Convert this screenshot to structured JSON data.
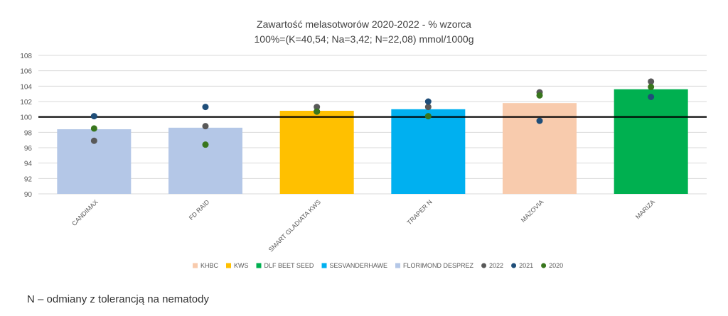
{
  "chart_data": {
    "type": "bar",
    "title": "Zawartość melasotworów 2020-2022 - % wzorca",
    "subtitle": "100%=(K=40,54; Na=3,42; N=22,08) mmol/1000g",
    "xlabel": "",
    "ylabel": "",
    "ylim": [
      90,
      108
    ],
    "yticks": [
      90,
      92,
      94,
      96,
      98,
      100,
      102,
      104,
      106,
      108
    ],
    "grid": true,
    "reference_line": 100,
    "legend_position": "bottom",
    "categories": [
      "CANDIMAX",
      "FD RAID",
      "SMART GLADIATA KWS",
      "TRAPER N",
      "MAZOVIA",
      "MARIZA"
    ],
    "values": [
      98.4,
      98.6,
      100.8,
      101.0,
      101.8,
      103.6
    ],
    "bar_groups": [
      "FLORIMOND DESPREZ",
      "FLORIMOND DESPREZ",
      "KWS",
      "SESVANDERHAWE",
      "KHBC",
      "DLF BEET SEED"
    ],
    "groups": [
      {
        "name": "KHBC",
        "color": "#f8cbad"
      },
      {
        "name": "KWS",
        "color": "#ffc000"
      },
      {
        "name": "DLF BEET SEED",
        "color": "#00b050"
      },
      {
        "name": "SESVANDERHAWE",
        "color": "#00b0f0"
      },
      {
        "name": "FLORIMOND DESPREZ",
        "color": "#b4c7e7"
      }
    ],
    "series": [
      {
        "name": "2022",
        "color": "#595959",
        "values": [
          96.9,
          98.8,
          101.3,
          101.3,
          103.2,
          104.6
        ]
      },
      {
        "name": "2021",
        "color": "#1f4e79",
        "values": [
          100.1,
          101.3,
          100.7,
          102.0,
          99.5,
          102.6
        ]
      },
      {
        "name": "2020",
        "color": "#38761d",
        "values": [
          98.5,
          96.4,
          100.7,
          100.1,
          102.8,
          103.9
        ]
      }
    ]
  },
  "footnote": "N – odmiany z tolerancją na nematody"
}
